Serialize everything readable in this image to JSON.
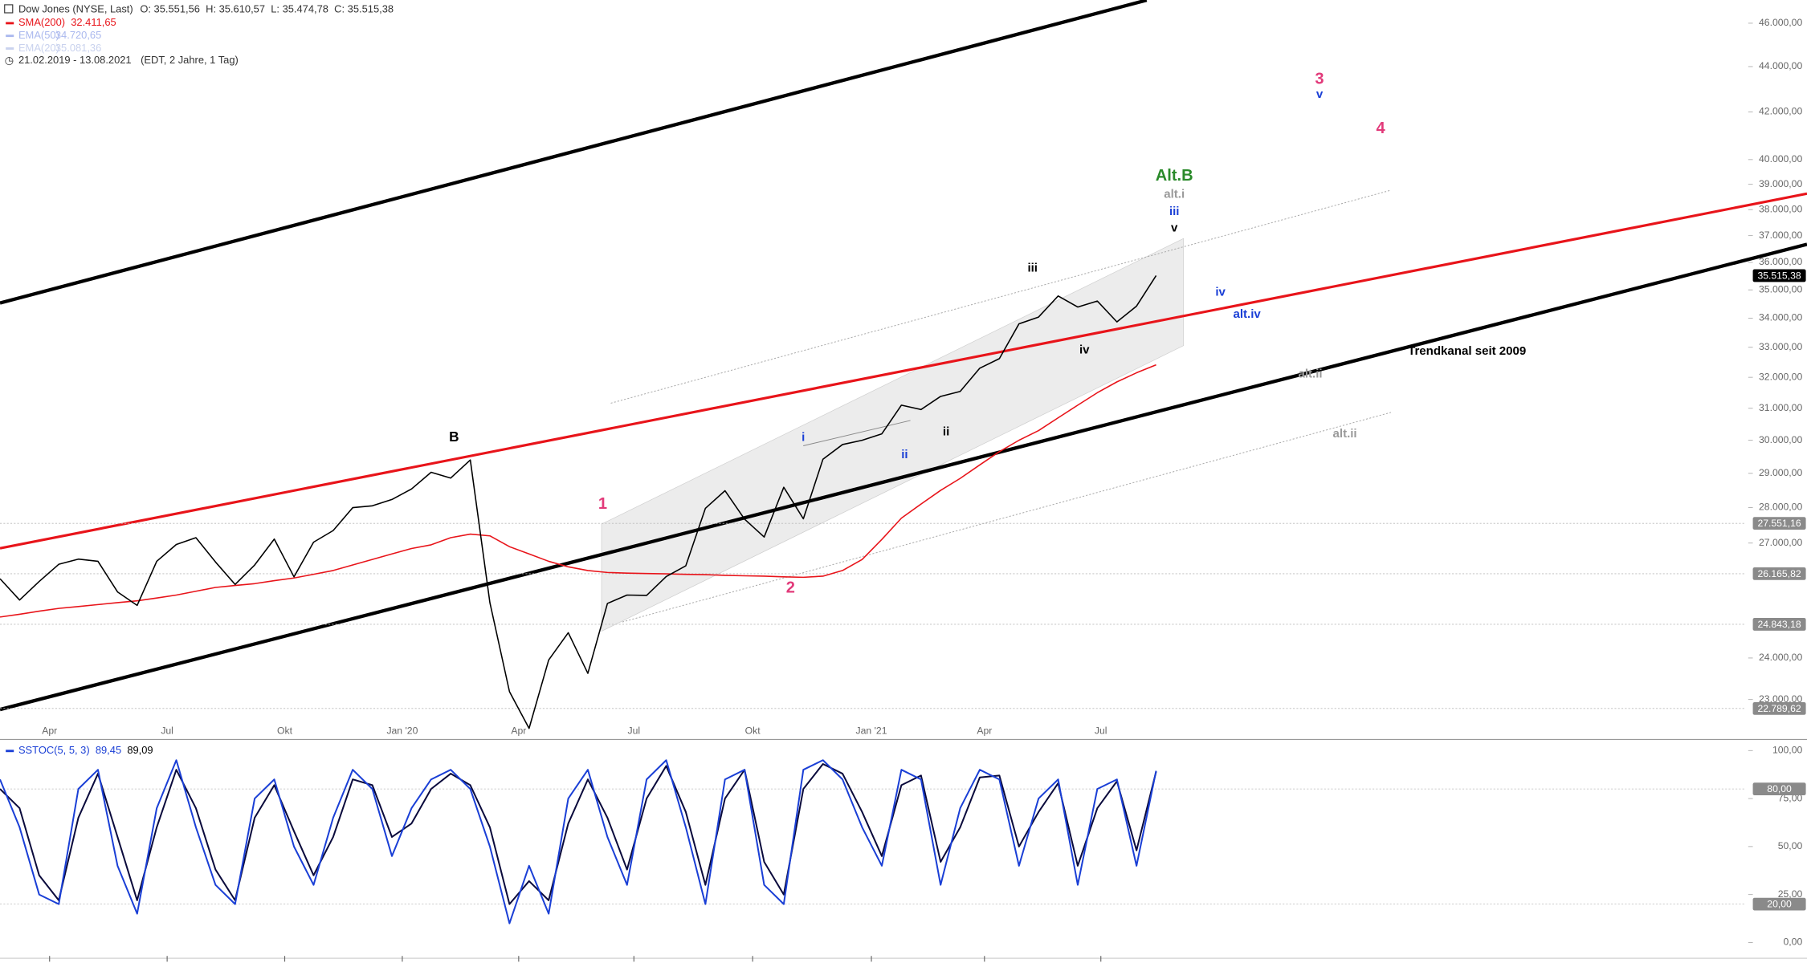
{
  "legend": {
    "title": "Dow Jones (NYSE, Last)",
    "ohlc": [
      "O: 35.551,56",
      "H: 35.610,57",
      "L: 35.474,78",
      "C: 35.515,38"
    ],
    "entries": [
      {
        "name": "EMA(50)",
        "label": "34.720,65",
        "color": "#aab8ee"
      },
      {
        "name": "EMA(20)",
        "label": "35.081,36",
        "color": "#c9d2ee"
      }
    ],
    "sma_label": "32.411,65",
    "range": "21.02.2019 - 13.08.2021",
    "info": "(EDT, 2 Jahre, 1 Tag)"
  },
  "chart_data": [
    {
      "type": "line",
      "log_scale": true,
      "xlim": [
        0,
        89.1
      ],
      "ylim": [
        22130,
        47100
      ],
      "xticks": [
        {
          "value": 2.53,
          "label": "Apr"
        },
        {
          "value": 8.53,
          "label": "Jul"
        },
        {
          "value": 14.53,
          "label": "Okt"
        },
        {
          "value": 20.53,
          "label": "Jan '20"
        },
        {
          "value": 26.47,
          "label": "Apr"
        },
        {
          "value": 32.35,
          "label": "Jul"
        },
        {
          "value": 38.41,
          "label": "Okt"
        },
        {
          "value": 44.47,
          "label": "Jan '21"
        },
        {
          "value": 50.24,
          "label": "Apr"
        },
        {
          "value": 56.18,
          "label": "Jul"
        }
      ],
      "yticks": [
        {
          "value": 46000,
          "label": "46.000,00"
        },
        {
          "value": 44000,
          "label": "44.000,00"
        },
        {
          "value": 42000,
          "label": "42.000,00"
        },
        {
          "value": 40000,
          "label": "40.000,00"
        },
        {
          "value": 39000,
          "label": "39.000,00"
        },
        {
          "value": 38000,
          "label": "38.000,00"
        },
        {
          "value": 37000,
          "label": "37.000,00"
        },
        {
          "value": 36000,
          "label": "36.000,00"
        },
        {
          "value": 35000,
          "label": "35.000,00"
        },
        {
          "value": 34000,
          "label": "34.000,00"
        },
        {
          "value": 33000,
          "label": "33.000,00"
        },
        {
          "value": 32000,
          "label": "32.000,00"
        },
        {
          "value": 31000,
          "label": "31.000,00"
        },
        {
          "value": 30000,
          "label": "30.000,00"
        },
        {
          "value": 29000,
          "label": "29.000,00"
        },
        {
          "value": 28000,
          "label": "28.000,00"
        },
        {
          "value": 27000,
          "label": "27.000,00"
        },
        {
          "value": 24000,
          "label": "24.000,00"
        },
        {
          "value": 23000,
          "label": "23.000,00"
        }
      ],
      "series": [
        {
          "name": "Dow Jones (NYSE, Last)",
          "color": "#000000",
          "values": [
            26031,
            25470,
            25960,
            26420,
            26560,
            26500,
            25680,
            25330,
            26500,
            26960,
            27150,
            26480,
            25880,
            26400,
            27110,
            26080,
            27025,
            27350,
            28000,
            28050,
            28235,
            28540,
            29030,
            28860,
            29400,
            25400,
            23185,
            22330,
            23950,
            24630,
            23625,
            25380,
            25600,
            25590,
            26090,
            26380,
            27980,
            28490,
            27670,
            27170,
            28590,
            27680,
            29420,
            29870,
            29999,
            30200,
            31100,
            30960,
            31380,
            31540,
            32300,
            32620,
            33800,
            34040,
            34780,
            34390,
            34600,
            33870,
            34420,
            35515
          ]
        },
        {
          "name": "SMA(200)",
          "color": "#e8141a",
          "values": [
            25030,
            25100,
            25180,
            25250,
            25300,
            25350,
            25400,
            25450,
            25520,
            25600,
            25700,
            25800,
            25850,
            25900,
            25980,
            26050,
            26150,
            26250,
            26400,
            26550,
            26700,
            26850,
            26950,
            27150,
            27250,
            27200,
            26900,
            26700,
            26500,
            26350,
            26250,
            26200,
            26180,
            26170,
            26160,
            26150,
            26140,
            26120,
            26110,
            26100,
            26080,
            26070,
            26100,
            26250,
            26550,
            27100,
            27700,
            28100,
            28500,
            28850,
            29250,
            29650,
            30000,
            30300,
            30700,
            31100,
            31500,
            31850,
            32150,
            32411
          ]
        }
      ],
      "levels": [
        {
          "value": 35515.38,
          "label": "35.515,38",
          "color": "#000000"
        },
        {
          "value": 27551.16,
          "label": "27.551,16",
          "color": "#8a8a8a"
        },
        {
          "value": 26165.82,
          "label": "26.165,82",
          "color": "#8a8a8a"
        },
        {
          "value": 24843.18,
          "label": "24.843,18",
          "color": "#8a8a8a"
        },
        {
          "value": 22789.62,
          "label": "22.789,62",
          "color": "#8a8a8a"
        }
      ],
      "annotations": [
        {
          "text": "B",
          "color": "#000000"
        },
        {
          "text": "1",
          "color": "#e23a7a"
        },
        {
          "text": "2",
          "color": "#e23a7a"
        },
        {
          "text": "i",
          "color": "#1a3fd6"
        },
        {
          "text": "ii",
          "color": "#1a3fd6"
        },
        {
          "text": "ii",
          "color": "#000000"
        },
        {
          "text": "iii",
          "color": "#000000"
        },
        {
          "text": "iv",
          "color": "#000000"
        },
        {
          "text": "Alt.B",
          "color": "#2a8a2a"
        },
        {
          "text": "alt.i",
          "color": "#9a9a9a"
        },
        {
          "text": "iii",
          "color": "#1a3fd6"
        },
        {
          "text": "v",
          "color": "#000000"
        },
        {
          "text": "3",
          "color": "#e23a7a"
        },
        {
          "text": "v",
          "color": "#1a3fd6"
        },
        {
          "text": "4",
          "color": "#e23a7a"
        },
        {
          "text": "iv",
          "color": "#1a3fd6"
        },
        {
          "text": "alt.iv",
          "color": "#1a3fd6"
        },
        {
          "text": "Trendkanal seit 2009",
          "color": "#000000"
        },
        {
          "text": "alt.ii",
          "color": "#9a9a9a"
        },
        {
          "text": "alt.ii",
          "color": "#9a9a9a"
        }
      ]
    },
    {
      "type": "line",
      "title": "SSTOC(5, 5, 3)",
      "xlim": [
        0,
        89.1
      ],
      "ylim": [
        -7,
        104
      ],
      "yticks": [
        {
          "value": 100,
          "label": "100,00"
        },
        {
          "value": 75,
          "label": "75,00"
        },
        {
          "value": 50,
          "label": "50,00"
        },
        {
          "value": 25,
          "label": "25,00"
        },
        {
          "value": 0,
          "label": "0,00"
        }
      ],
      "levels": [
        {
          "value": 80,
          "label": "80,00"
        },
        {
          "value": 20,
          "label": "20,00"
        }
      ],
      "series": [
        {
          "color": "#1a3fd6",
          "value_label": "89,45",
          "values": [
            85,
            60,
            25,
            20,
            80,
            90,
            40,
            15,
            70,
            95,
            60,
            30,
            20,
            75,
            85,
            50,
            30,
            65,
            90,
            80,
            45,
            70,
            85,
            90,
            80,
            50,
            10,
            40,
            15,
            75,
            90,
            55,
            30,
            85,
            95,
            60,
            20,
            85,
            90,
            30,
            20,
            90,
            95,
            85,
            60,
            40,
            90,
            85,
            30,
            70,
            90,
            85,
            40,
            75,
            85,
            30,
            80,
            85,
            40,
            89.45
          ]
        },
        {
          "color": "#0a0a3c",
          "value_label": "89,09",
          "values": [
            80,
            70,
            35,
            22,
            65,
            88,
            55,
            22,
            60,
            90,
            70,
            38,
            22,
            65,
            82,
            58,
            35,
            55,
            85,
            82,
            55,
            62,
            80,
            88,
            82,
            60,
            20,
            32,
            22,
            62,
            85,
            65,
            38,
            75,
            92,
            68,
            30,
            75,
            90,
            42,
            25,
            80,
            93,
            88,
            68,
            45,
            82,
            87,
            42,
            60,
            86,
            87,
            50,
            68,
            83,
            40,
            70,
            84,
            48,
            89.09
          ]
        }
      ]
    }
  ]
}
